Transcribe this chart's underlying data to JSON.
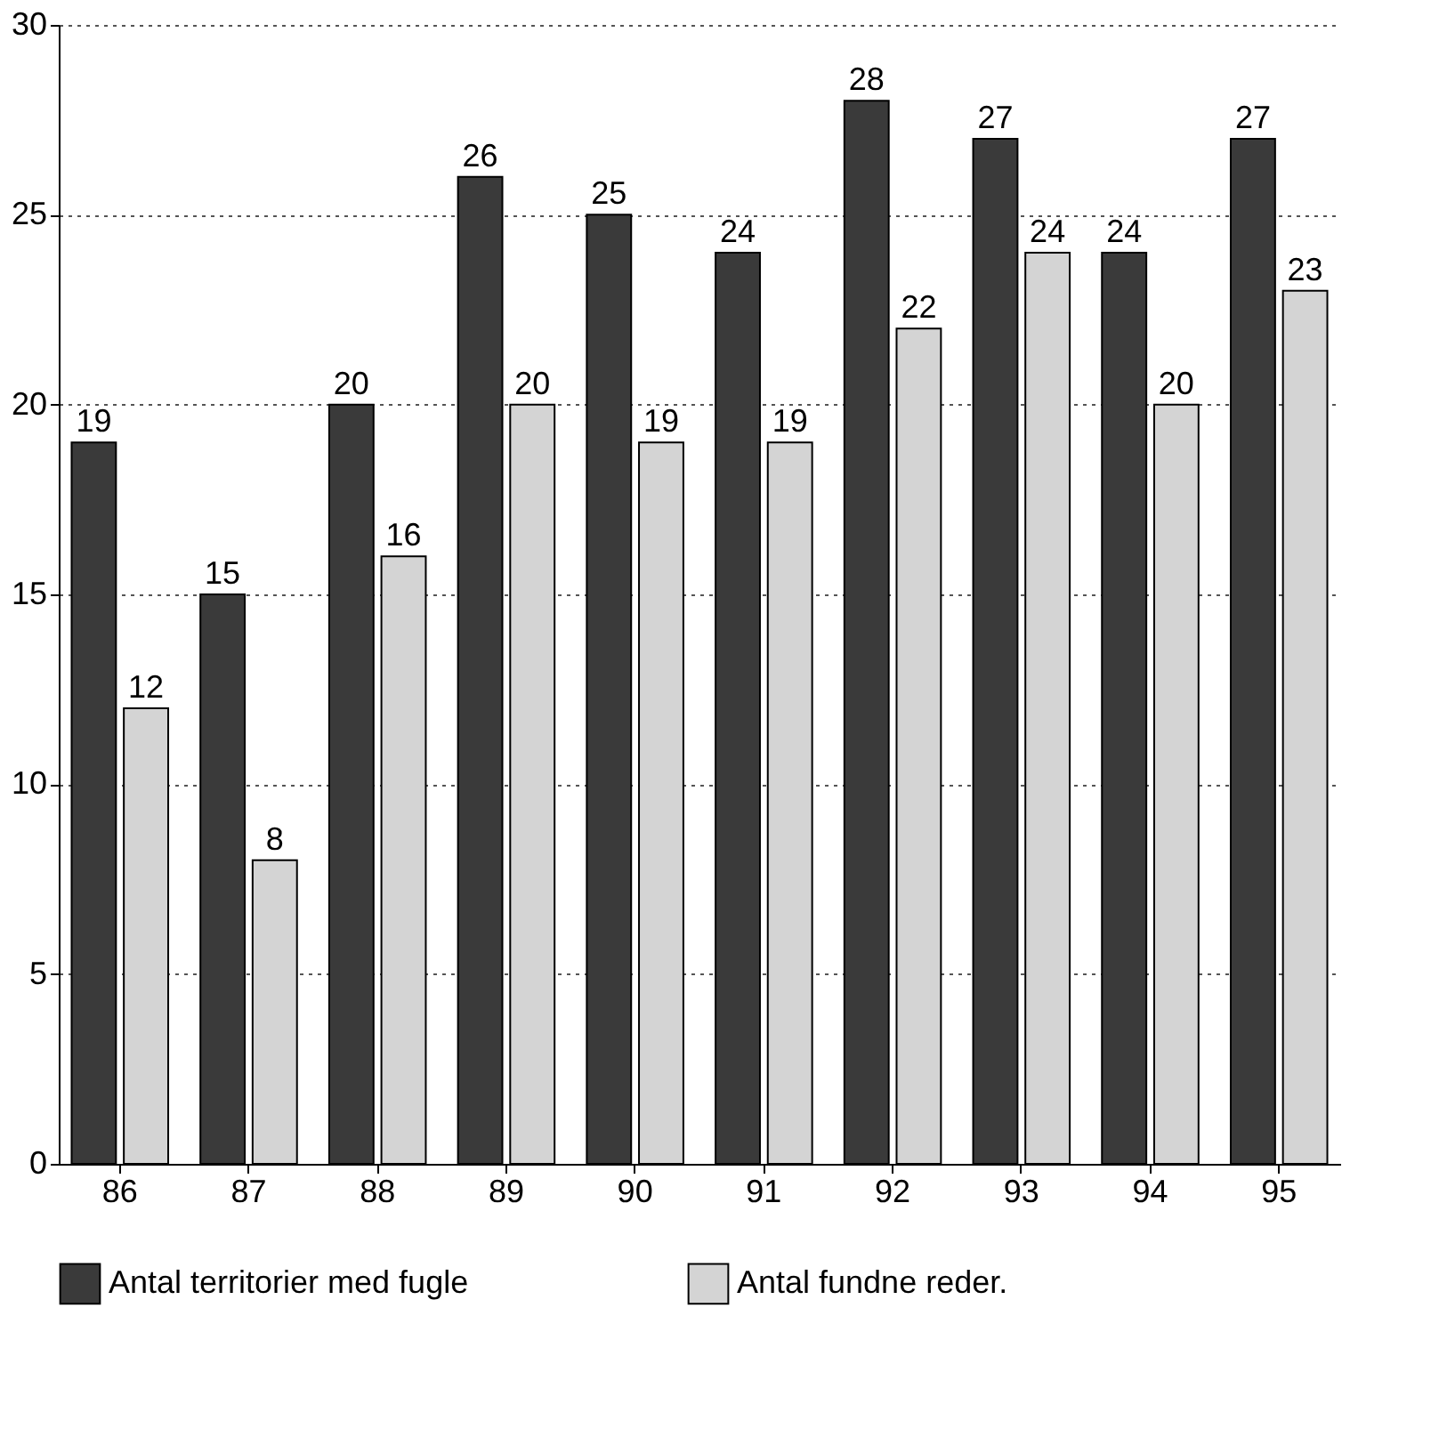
{
  "chart_data": {
    "type": "bar",
    "categories": [
      "86",
      "87",
      "88",
      "89",
      "90",
      "91",
      "92",
      "93",
      "94",
      "95"
    ],
    "series": [
      {
        "name": "Antal territorier med fugle",
        "color": "#3a3a3a",
        "values": [
          19,
          15,
          20,
          26,
          25,
          24,
          28,
          27,
          24,
          27
        ]
      },
      {
        "name": "Antal fundne reder.",
        "color": "#d4d4d4",
        "values": [
          12,
          8,
          16,
          20,
          19,
          19,
          22,
          24,
          20,
          23
        ]
      }
    ],
    "ylim": [
      0,
      30
    ],
    "yticks": [
      0,
      5,
      10,
      15,
      20,
      25,
      30
    ],
    "grid": "y",
    "legend": "bottom",
    "data_labels": true
  }
}
